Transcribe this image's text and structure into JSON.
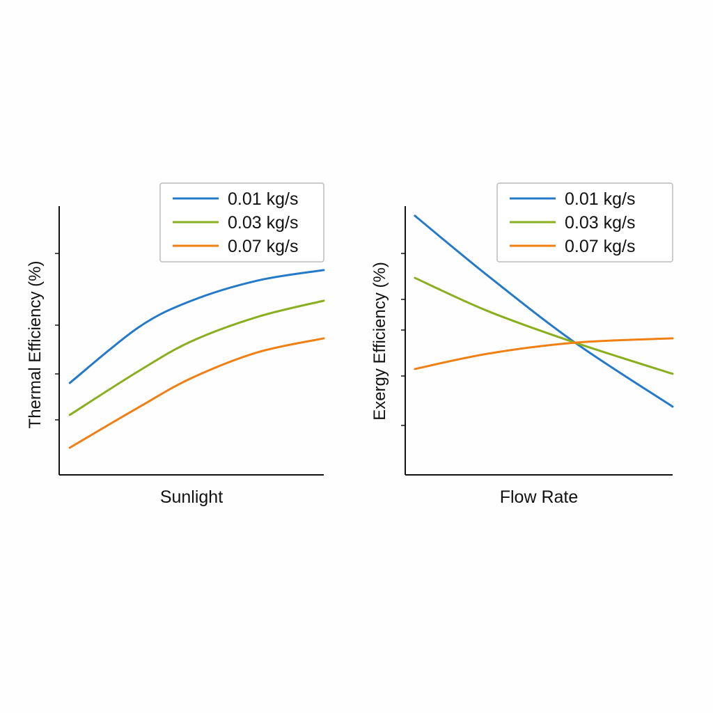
{
  "chart_data": [
    {
      "type": "line",
      "xlabel": "Sunlight",
      "ylabel": "Thermal Efficiency (%)",
      "xlim": [
        0,
        1
      ],
      "ylim": [
        0,
        100
      ],
      "grid": false,
      "legend": "top-right",
      "x": [
        0.04,
        0.3,
        0.5,
        0.75,
        1.0
      ],
      "series": [
        {
          "name": "0.01 kg/s",
          "color": "#2479c9",
          "values": [
            34.2,
            54.9,
            64.8,
            72.3,
            76.2
          ]
        },
        {
          "name": "0.03 kg/s",
          "color": "#8aaf1e",
          "values": [
            22.3,
            38.6,
            49.7,
            58.8,
            64.8
          ]
        },
        {
          "name": "0.07 kg/s",
          "color": "#f07f14",
          "values": [
            10.1,
            25.1,
            36.0,
            45.6,
            50.8
          ]
        }
      ]
    },
    {
      "type": "line",
      "xlabel": "Flow Rate",
      "ylabel": "Exergy Efficiency (%)",
      "xlim": [
        0,
        1
      ],
      "ylim": [
        0,
        100
      ],
      "grid": false,
      "legend": "top-right",
      "x": [
        0.036,
        0.31,
        0.635,
        1.0
      ],
      "series": [
        {
          "name": "0.01 kg/s",
          "color": "#2479c9",
          "values": [
            96.4,
            74.0,
            49.2,
            25.4
          ]
        },
        {
          "name": "0.03 kg/s",
          "color": "#8aaf1e",
          "values": [
            73.3,
            60.9,
            49.2,
            37.6
          ]
        },
        {
          "name": "0.07 kg/s",
          "color": "#f07f14",
          "values": [
            39.4,
            45.1,
            49.2,
            50.8
          ]
        }
      ]
    }
  ]
}
